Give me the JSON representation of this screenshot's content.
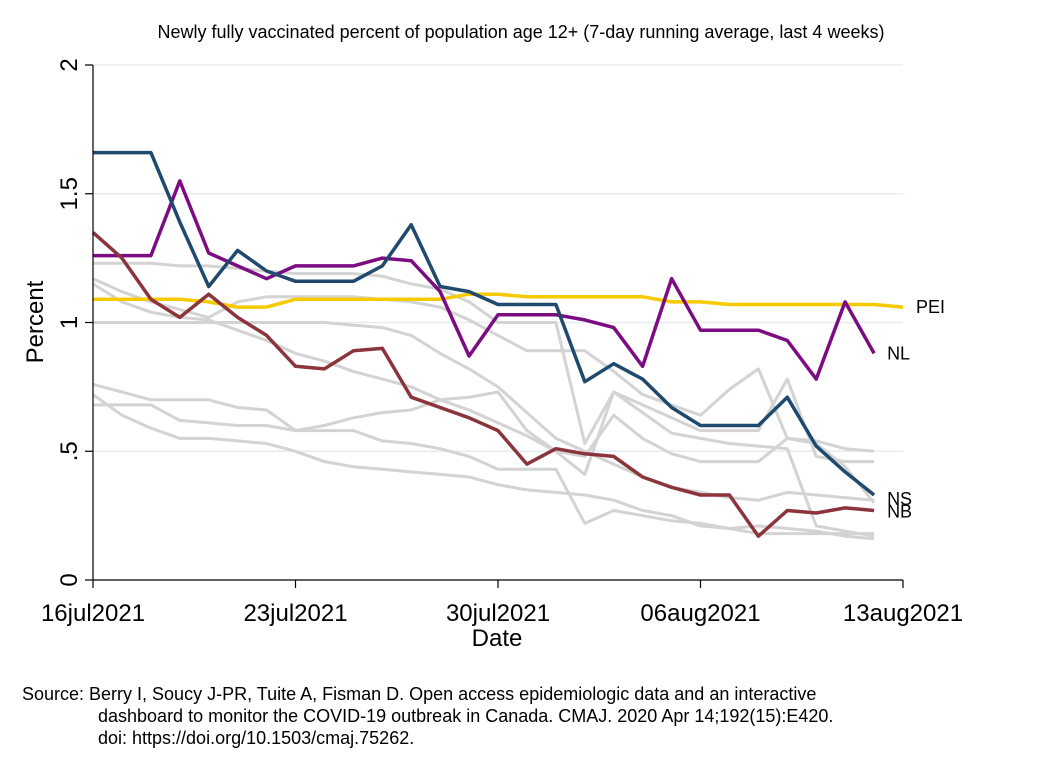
{
  "chart_data": {
    "type": "line",
    "title": "Newly fully vaccinated percent of population age 12+ (7-day running average, last 4 weeks)",
    "xlabel": "Date",
    "ylabel": "Percent",
    "x_start": "2021-07-16",
    "xlim": [
      "2021-07-16",
      "2021-08-13"
    ],
    "ylim": [
      0,
      2
    ],
    "x_ticks": [
      "16jul2021",
      "23jul2021",
      "30jul2021",
      "06aug2021",
      "13aug2021"
    ],
    "y_ticks": [
      "0",
      ".5",
      "1",
      "1.5",
      "2"
    ],
    "y_tick_values": [
      0,
      0.5,
      1,
      1.5,
      2
    ],
    "grid": "horizontal",
    "colors": {
      "PEI": "#f5cb00",
      "NL": "#7b0c82",
      "NS": "#1f4a6e",
      "NB": "#8b343c",
      "other": "#d3d3d3",
      "grid": "#e6edf2"
    },
    "series": [
      {
        "name": "PEI",
        "labeled": true,
        "values": [
          1.09,
          1.09,
          1.09,
          1.09,
          1.08,
          1.06,
          1.06,
          1.09,
          1.09,
          1.09,
          1.09,
          1.09,
          1.09,
          1.11,
          1.11,
          1.1,
          1.1,
          1.1,
          1.1,
          1.1,
          1.08,
          1.08,
          1.07,
          1.07,
          1.07,
          1.07,
          1.07,
          1.07,
          1.06
        ]
      },
      {
        "name": "NL",
        "labeled": true,
        "values": [
          1.26,
          1.26,
          1.26,
          1.55,
          1.27,
          1.22,
          1.17,
          1.22,
          1.22,
          1.22,
          1.25,
          1.24,
          1.12,
          0.87,
          1.03,
          1.03,
          1.03,
          1.01,
          0.98,
          0.83,
          1.17,
          0.97,
          0.97,
          0.97,
          0.93,
          0.78,
          1.08,
          0.88
        ]
      },
      {
        "name": "NS",
        "labeled": true,
        "values": [
          1.66,
          1.66,
          1.66,
          1.39,
          1.14,
          1.28,
          1.2,
          1.16,
          1.16,
          1.16,
          1.22,
          1.38,
          1.14,
          1.12,
          1.07,
          1.07,
          1.07,
          0.77,
          0.84,
          0.78,
          0.67,
          0.6,
          0.6,
          0.6,
          0.71,
          0.52,
          0.42,
          0.33
        ]
      },
      {
        "name": "NB",
        "labeled": true,
        "values": [
          1.35,
          1.25,
          1.09,
          1.02,
          1.11,
          1.02,
          0.95,
          0.83,
          0.82,
          0.89,
          0.9,
          0.71,
          0.67,
          0.63,
          0.58,
          0.45,
          0.51,
          0.49,
          0.48,
          0.4,
          0.36,
          0.33,
          0.33,
          0.17,
          0.27,
          0.26,
          0.28,
          0.27
        ]
      },
      {
        "name": "",
        "labeled": false,
        "values": [
          1.23,
          1.23,
          1.23,
          1.22,
          1.22,
          1.21,
          1.2,
          1.19,
          1.19,
          1.19,
          1.18,
          1.15,
          1.13,
          1.08,
          1.0,
          1.0,
          1.0,
          0.53,
          0.73,
          0.68,
          0.63,
          0.58,
          0.58,
          0.58,
          0.78,
          0.48,
          0.46,
          0.46
        ]
      },
      {
        "name": "",
        "labeled": false,
        "values": [
          1.17,
          1.12,
          1.08,
          1.05,
          1.02,
          1.08,
          1.1,
          1.1,
          1.1,
          1.1,
          1.09,
          1.08,
          1.06,
          1.01,
          0.95,
          0.89,
          0.89,
          0.89,
          0.81,
          0.72,
          0.68,
          0.64,
          0.74,
          0.82,
          0.55,
          0.54,
          0.51,
          0.5
        ]
      },
      {
        "name": "",
        "labeled": false,
        "values": [
          1.15,
          1.08,
          1.04,
          1.02,
          1.01,
          0.97,
          0.93,
          0.88,
          0.85,
          0.81,
          0.78,
          0.75,
          0.7,
          0.66,
          0.61,
          0.56,
          0.5,
          0.48,
          0.64,
          0.55,
          0.49,
          0.46,
          0.46,
          0.46,
          0.55,
          0.53,
          0.44,
          0.3
        ]
      },
      {
        "name": "",
        "labeled": false,
        "values": [
          0.76,
          0.73,
          0.7,
          0.7,
          0.7,
          0.67,
          0.66,
          0.58,
          0.6,
          0.63,
          0.65,
          0.66,
          0.7,
          0.71,
          0.73,
          0.58,
          0.5,
          0.41,
          0.73,
          0.65,
          0.57,
          0.55,
          0.53,
          0.52,
          0.51,
          0.21,
          0.19,
          0.17
        ]
      },
      {
        "name": "",
        "labeled": false,
        "values": [
          0.68,
          0.68,
          0.68,
          0.62,
          0.61,
          0.6,
          0.6,
          0.58,
          0.58,
          0.58,
          0.54,
          0.53,
          0.51,
          0.48,
          0.43,
          0.43,
          0.43,
          0.22,
          0.27,
          0.25,
          0.23,
          0.22,
          0.2,
          0.18,
          0.18,
          0.18,
          0.18,
          0.18
        ]
      },
      {
        "name": "",
        "labeled": false,
        "values": [
          0.72,
          0.64,
          0.59,
          0.55,
          0.55,
          0.54,
          0.53,
          0.5,
          0.46,
          0.44,
          0.43,
          0.42,
          0.41,
          0.4,
          0.37,
          0.35,
          0.34,
          0.33,
          0.31,
          0.27,
          0.25,
          0.21,
          0.2,
          0.21,
          0.2,
          0.19,
          0.17,
          0.16
        ]
      },
      {
        "name": "",
        "labeled": false,
        "values": [
          1.0,
          1.0,
          1.0,
          1.0,
          1.0,
          1.0,
          1.0,
          1.0,
          1.0,
          0.99,
          0.98,
          0.95,
          0.88,
          0.82,
          0.75,
          0.65,
          0.55,
          0.5,
          0.45,
          0.4,
          0.36,
          0.34,
          0.32,
          0.31,
          0.34,
          0.33,
          0.32,
          0.31
        ]
      }
    ]
  },
  "source": {
    "line1": "Source: Berry I, Soucy J-PR, Tuite A, Fisman D. Open access epidemiologic data and an interactive",
    "line2": "dashboard to monitor the COVID-19 outbreak in Canada. CMAJ. 2020 Apr 14;192(15):E420.",
    "line3": "doi: https://doi.org/10.1503/cmaj.75262."
  }
}
